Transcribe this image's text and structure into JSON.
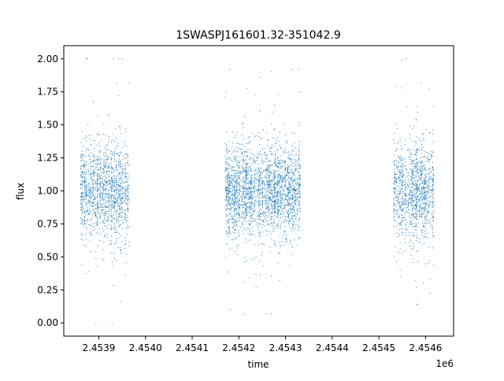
{
  "chart_data": {
    "type": "scatter",
    "title": "1SWASPJ161601.32-351042.9",
    "xlabel": "time",
    "ylabel": "flux",
    "x_offset_label": "1e6",
    "xlim": [
      2453825,
      2454660
    ],
    "ylim": [
      -0.1,
      2.1
    ],
    "x_ticks": [
      2453900,
      2454000,
      2454100,
      2454200,
      2454300,
      2454400,
      2454500,
      2454600
    ],
    "x_tick_labels": [
      "2.4539",
      "2.4540",
      "2.4541",
      "2.4542",
      "2.4543",
      "2.4544",
      "2.4545",
      "2.4546"
    ],
    "y_ticks": [
      0.0,
      0.25,
      0.5,
      0.75,
      1.0,
      1.25,
      1.5,
      1.75,
      2.0
    ],
    "y_tick_labels": [
      "0.00",
      "0.25",
      "0.50",
      "0.75",
      "1.00",
      "1.25",
      "1.50",
      "1.75",
      "2.00"
    ],
    "grid": false,
    "legend": "none",
    "marker_color": "#1f77b4",
    "series": [
      {
        "observing_seasons": [
          {
            "x_range": [
              2453860,
              2453965
            ],
            "center": 1.0,
            "spread": 0.18,
            "min": 0.0,
            "max": 2.0
          },
          {
            "x_range": [
              2454170,
              2454333
            ],
            "center": 1.0,
            "spread": 0.17,
            "min": 0.07,
            "max": 1.92
          },
          {
            "x_range": [
              2454532,
              2454618
            ],
            "center": 1.0,
            "spread": 0.18,
            "min": 0.14,
            "max": 2.0
          }
        ]
      }
    ]
  }
}
